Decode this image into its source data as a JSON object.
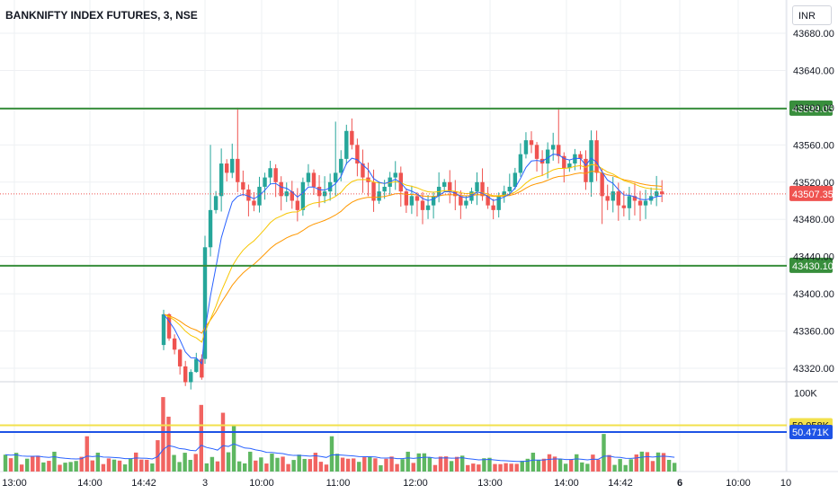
{
  "header": {
    "symbol_title": "BANKNIFTY INDEX FUTURES, 3, NSE",
    "currency_button": "INR"
  },
  "colors": {
    "up": "#26a69a",
    "up_bar": "#4caf50",
    "down": "#ef5350",
    "line_blue": "#2962ff",
    "line_yellow": "#f7c600",
    "line_orange": "#ff9800",
    "level_line": "#388e3c",
    "vol_yellow_line": "#f2e14c",
    "vol_blue_line": "#1e53e5",
    "grid": "#eef0f3"
  },
  "chart_data": {
    "type": "candlestick",
    "price_axis": {
      "ticks": [
        "43680.00",
        "43640.00",
        "43600.00",
        "43560.00",
        "43520.00",
        "43480.00",
        "43440.00",
        "43400.00",
        "43360.00",
        "43320.00"
      ],
      "ylim": [
        43300,
        43700
      ]
    },
    "time_axis": {
      "ticks": [
        {
          "label": "13:00",
          "bold": false
        },
        {
          "label": "14:00",
          "bold": false
        },
        {
          "label": "14:42",
          "bold": false
        },
        {
          "label": "3",
          "bold": false
        },
        {
          "label": "10:00",
          "bold": false
        },
        {
          "label": "11:00",
          "bold": false
        },
        {
          "label": "12:00",
          "bold": false
        },
        {
          "label": "13:00",
          "bold": false
        },
        {
          "label": "14:00",
          "bold": false
        },
        {
          "label": "14:42",
          "bold": false
        },
        {
          "label": "6",
          "bold": true
        },
        {
          "label": "10:00",
          "bold": false
        },
        {
          "label": "10",
          "bold": false
        }
      ]
    },
    "levels": [
      {
        "value": 43599.05,
        "label": "43599.05"
      },
      {
        "value": 43430.1,
        "label": "43430.10"
      }
    ],
    "last_price": {
      "value": 43507.35,
      "label": "43507.35"
    },
    "volume_axis": {
      "ticks": [
        "100K"
      ],
      "ylim": [
        0,
        110
      ]
    },
    "volume_lines": [
      {
        "value": 59.058,
        "label": "59.058K"
      },
      {
        "value": 50.471,
        "label": "50.471K"
      }
    ]
  }
}
